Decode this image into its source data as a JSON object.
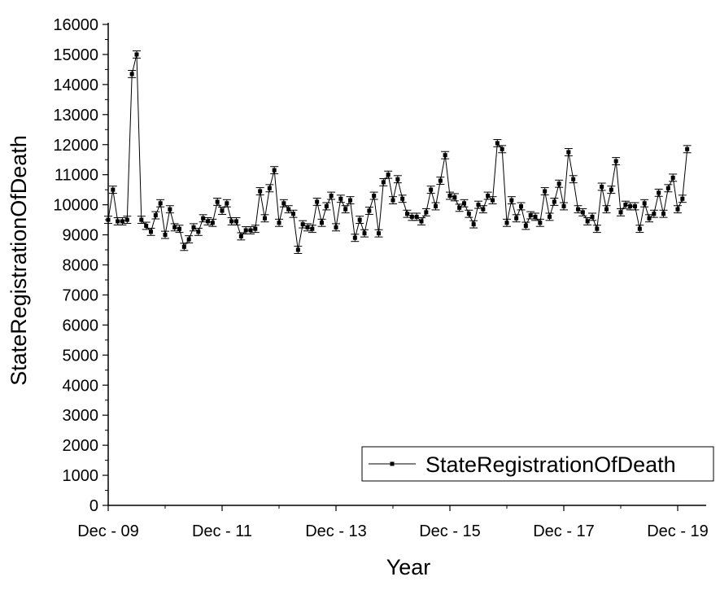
{
  "chart_data": {
    "type": "line",
    "xlabel": "Year",
    "ylabel": "StateRegistrationOfDeath",
    "ylim": [
      0,
      16000
    ],
    "y_ticks": [
      0,
      1000,
      2000,
      3000,
      4000,
      5000,
      6000,
      7000,
      8000,
      9000,
      10000,
      11000,
      12000,
      13000,
      14000,
      15000,
      16000
    ],
    "y_tick_labels": [
      "0",
      "1000",
      "2000",
      "3000",
      "4000",
      "5000",
      "6000",
      "7000",
      "8000",
      "9000",
      "10000",
      "11000",
      "12000",
      "13000",
      "14000",
      "15000",
      "16000"
    ],
    "x_tick_labels": [
      "Dec - 09",
      "Dec - 11",
      "Dec - 13",
      "Dec - 15",
      "Dec - 17",
      "Dec - 19"
    ],
    "x_tick_months": [
      0,
      24,
      48,
      72,
      96,
      120
    ],
    "xlim_months": [
      0,
      126
    ],
    "start_month": "Dec 2009",
    "legend": {
      "position": "bottom-right",
      "label": "StateRegistrationOfDeath"
    },
    "grid": false,
    "series": [
      {
        "name": "StateRegistrationOfDeath",
        "error_bar": 120,
        "values": [
          9500,
          10500,
          9450,
          9450,
          9500,
          14350,
          15000,
          9500,
          9300,
          9100,
          9650,
          10050,
          9000,
          9850,
          9250,
          9200,
          8600,
          8850,
          9250,
          9100,
          9550,
          9450,
          9400,
          10100,
          9800,
          10050,
          9450,
          9450,
          8950,
          9150,
          9150,
          9200,
          10450,
          9550,
          10550,
          11150,
          9400,
          10050,
          9850,
          9700,
          8500,
          9350,
          9250,
          9200,
          10100,
          9400,
          9950,
          10300,
          9250,
          10200,
          9850,
          10150,
          8900,
          9500,
          9050,
          9800,
          10300,
          9050,
          10750,
          11000,
          10150,
          10850,
          10200,
          9700,
          9600,
          9600,
          9450,
          9750,
          10500,
          9950,
          10800,
          11650,
          10300,
          10250,
          9900,
          10050,
          9700,
          9350,
          10000,
          9850,
          10300,
          10150,
          12050,
          11850,
          9400,
          10150,
          9550,
          9950,
          9300,
          9650,
          9600,
          9400,
          10450,
          9600,
          10100,
          10700,
          9950,
          11750,
          10850,
          9850,
          9750,
          9450,
          9600,
          9200,
          10600,
          9850,
          10500,
          11450,
          9750,
          10000,
          9950,
          9950,
          9200,
          10050,
          9550,
          9700,
          10400,
          9700,
          10550,
          10900,
          9850,
          10200,
          11850
        ]
      }
    ]
  }
}
